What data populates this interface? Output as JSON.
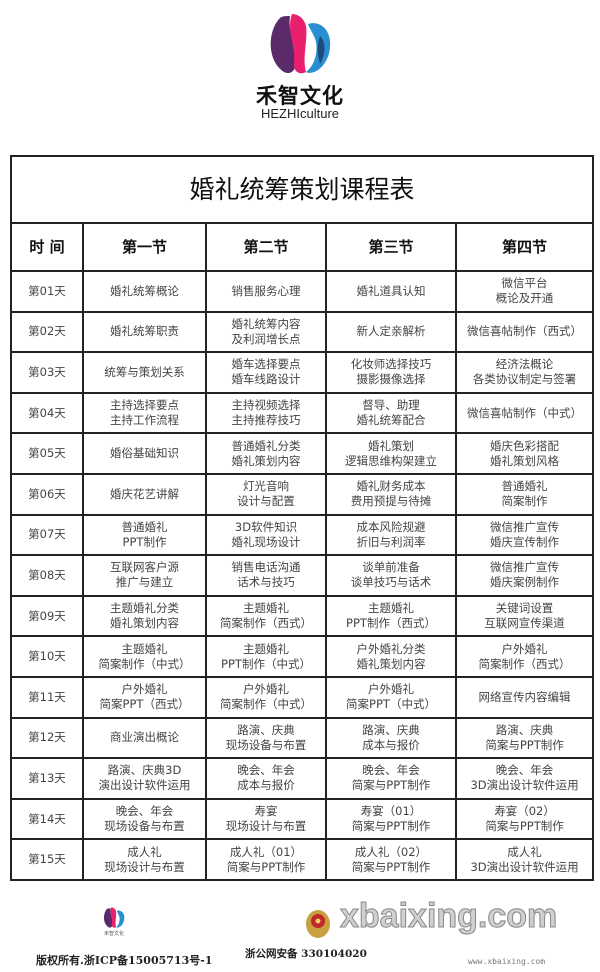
{
  "brand": {
    "name_cn": "禾智文化",
    "name_en": "HEZHIculture"
  },
  "title": "婚礼统筹策划课程表",
  "headers": [
    "时 间",
    "第一节",
    "第二节",
    "第三节",
    "第四节"
  ],
  "rows": [
    [
      "第01天",
      "婚礼统筹概论",
      "销售服务心理",
      "婚礼道具认知",
      "微信平台\n概论及开通"
    ],
    [
      "第02天",
      "婚礼统筹职责",
      "婚礼统筹内容\n及利润增长点",
      "新人定亲解析",
      "微信喜帖制作（西式）"
    ],
    [
      "第03天",
      "统筹与策划关系",
      "婚车选择要点\n婚车线路设计",
      "化妆师选择技巧\n摄影摄像选择",
      "经济法概论\n各类协议制定与签署"
    ],
    [
      "第04天",
      "主持选择要点\n主持工作流程",
      "主持视频选择\n主持推荐技巧",
      "督导、助理\n婚礼统筹配合",
      "微信喜帖制作（中式）"
    ],
    [
      "第05天",
      "婚俗基础知识",
      "普通婚礼分类\n婚礼策划内容",
      "婚礼策划\n逻辑思维构架建立",
      "婚庆色彩搭配\n婚礼策划风格"
    ],
    [
      "第06天",
      "婚庆花艺讲解",
      "灯光音响\n设计与配置",
      "婚礼财务成本\n费用预提与待摊",
      "普通婚礼\n简案制作"
    ],
    [
      "第07天",
      "普通婚礼\nPPT制作",
      "3D软件知识\n婚礼现场设计",
      "成本风险规避\n折旧与利润率",
      "微信推广宣传\n婚庆宣传制作"
    ],
    [
      "第08天",
      "互联网客户源\n推广与建立",
      "销售电话沟通\n话术与技巧",
      "谈单前准备\n谈单技巧与话术",
      "微信推广宣传\n婚庆案例制作"
    ],
    [
      "第09天",
      "主题婚礼分类\n婚礼策划内容",
      "主题婚礼\n简案制作（西式）",
      "主题婚礼\nPPT制作（西式）",
      "关键词设置\n互联网宣传渠道"
    ],
    [
      "第10天",
      "主题婚礼\n简案制作（中式）",
      "主题婚礼\nPPT制作（中式）",
      "户外婚礼分类\n婚礼策划内容",
      "户外婚礼\n简案制作（西式）"
    ],
    [
      "第11天",
      "户外婚礼\n简案PPT（西式）",
      "户外婚礼\n简案制作（中式）",
      "户外婚礼\n简案PPT（中式）",
      "网络宣传内容编辑"
    ],
    [
      "第12天",
      "商业演出概论",
      "路演、庆典\n现场设备与布置",
      "路演、庆典\n成本与报价",
      "路演、庆典\n简案与PPT制作"
    ],
    [
      "第13天",
      "路演、庆典3D\n演出设计软件运用",
      "晚会、年会\n成本与报价",
      "晚会、年会\n简案与PPT制作",
      "晚会、年会\n3D演出设计软件运用"
    ],
    [
      "第14天",
      "晚会、年会\n现场设备与布置",
      "寿宴\n现场设计与布置",
      "寿宴（01）\n简案与PPT制作",
      "寿宴（02）\n简案与PPT制作"
    ],
    [
      "第15天",
      "成人礼\n现场设计与布置",
      "成人礼（01）\n简案与PPT制作",
      "成人礼（02）\n简案与PPT制作",
      "成人礼\n3D演出设计软件运用"
    ]
  ],
  "footer": {
    "logo_text": "禾智文化",
    "copyright": "版权所有.浙ICP备15005713号-1",
    "police": "浙公网安备 330104020",
    "watermark": "xbaixing.com",
    "watermark_url": "www.xbaixing.com"
  },
  "colors": {
    "logo_pink": "#e8206e",
    "logo_blue": "#2a8fd0",
    "logo_purple": "#5a2a6a",
    "border": "#222222"
  }
}
